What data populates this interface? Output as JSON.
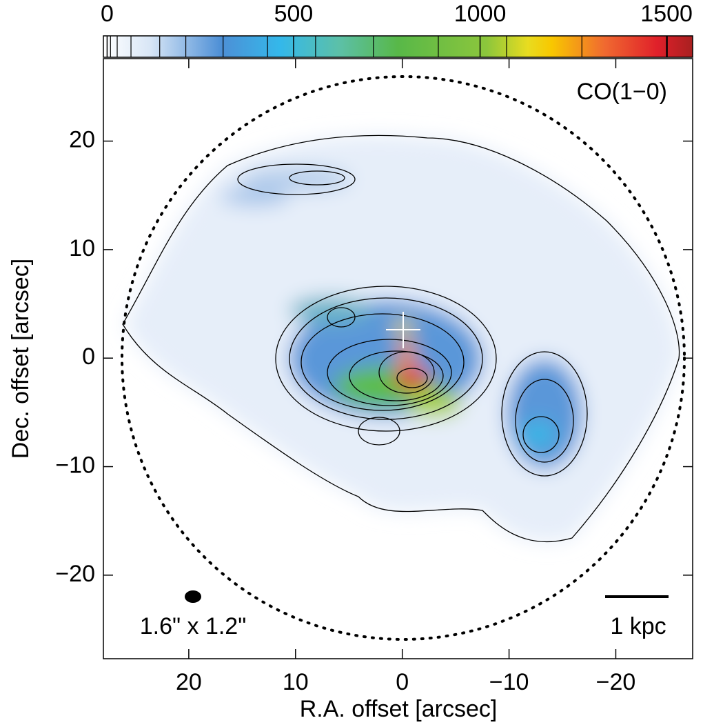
{
  "chart_data": {
    "type": "map",
    "annotations": [
      "CO(1−0)",
      "1.6\" x 1.2\"",
      "1 kpc"
    ],
    "xlabel": "R.A. offset [arcsec]",
    "ylabel": "Dec. offset [arcsec]",
    "xlim": [
      28,
      -27.2
    ],
    "ylim": [
      -27.7,
      27.6
    ],
    "xticks": [
      {
        "value": 20,
        "label": "20"
      },
      {
        "value": 10,
        "label": "10"
      },
      {
        "value": 0,
        "label": "0"
      },
      {
        "value": -10,
        "label": "−10"
      },
      {
        "value": -20,
        "label": "−20"
      }
    ],
    "yticks": [
      {
        "value": -20,
        "label": "−20"
      },
      {
        "value": -10,
        "label": "−10"
      },
      {
        "value": 0,
        "label": "0"
      },
      {
        "value": 10,
        "label": "10"
      },
      {
        "value": 20,
        "label": "20"
      }
    ],
    "clim": [
      -10,
      1570
    ],
    "cticks": [
      0,
      500,
      1000,
      1500
    ],
    "contour_levels": [
      9,
      27,
      64,
      141,
      211,
      311,
      430,
      559,
      714,
      888,
      1071,
      1273,
      1502
    ]
  }
}
